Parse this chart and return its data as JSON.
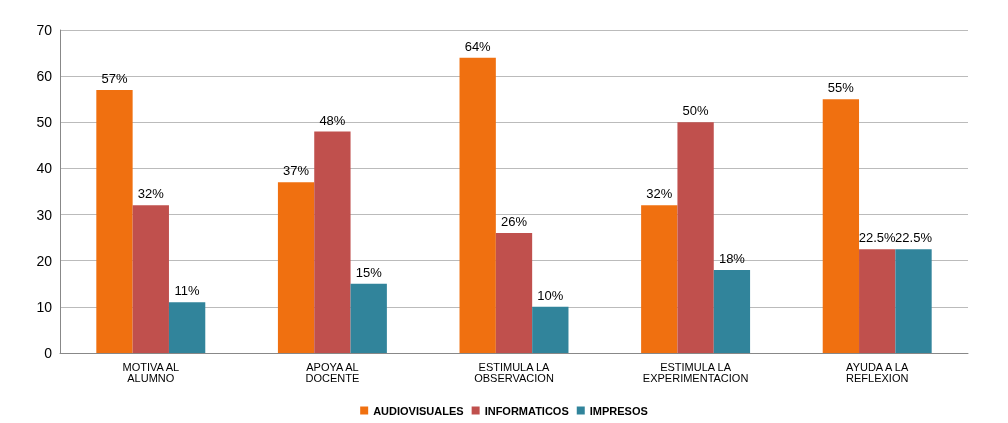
{
  "chart_data": {
    "type": "bar",
    "categories": [
      "MOTIVA AL ALUMNO",
      "APOYA AL DOCENTE",
      "ESTIMULA LA OBSERVACION",
      "ESTIMULA LA EXPERIMENTACION",
      "AYUDA A LA REFLEXION"
    ],
    "series": [
      {
        "name": "AUDIOVISUALES",
        "color": "#f07010",
        "values": [
          57,
          37,
          64,
          32,
          55
        ],
        "value_labels": [
          "57%",
          "37%",
          "64%",
          "32%",
          "55%"
        ]
      },
      {
        "name": "INFORMATICOS",
        "color": "#c0504d",
        "values": [
          32,
          48,
          26,
          50,
          22.5
        ],
        "value_labels": [
          "32%",
          "48%",
          "26%",
          "50%",
          "22.5%"
        ]
      },
      {
        "name": "IMPRESOS",
        "color": "#31849b",
        "values": [
          11,
          15,
          10,
          18,
          22.5
        ],
        "value_labels": [
          "11%",
          "15%",
          "10%",
          "18%",
          "22.5%"
        ]
      }
    ],
    "ylim": [
      0,
      70
    ],
    "yticks": [
      0,
      10,
      20,
      30,
      40,
      50,
      60,
      70
    ],
    "grid": "y",
    "legend": "bottom"
  }
}
